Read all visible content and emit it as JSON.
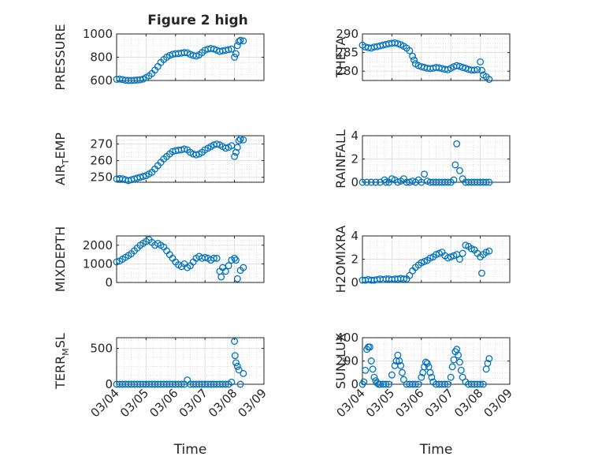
{
  "figure": {
    "title": "Figure 2 high"
  },
  "chart_data": [
    {
      "type": "scatter",
      "ylabel": "PRESSURE",
      "ylim": [
        600,
        1000
      ],
      "yticks": [
        600,
        800,
        1000
      ],
      "ytick_labels": [
        "600",
        "800",
        "1000"
      ],
      "x": [
        4.0,
        4.1,
        4.2,
        4.3,
        4.4,
        4.5,
        4.6,
        4.7,
        4.8,
        4.9,
        5.0,
        5.1,
        5.2,
        5.3,
        5.4,
        5.5,
        5.6,
        5.7,
        5.8,
        5.9,
        6.0,
        6.1,
        6.2,
        6.3,
        6.4,
        6.5,
        6.6,
        6.7,
        6.8,
        6.9,
        7.0,
        7.1,
        7.2,
        7.3,
        7.4,
        7.5,
        7.6,
        7.7,
        7.8,
        7.9,
        8.0,
        8.05,
        8.1,
        8.15,
        8.2,
        8.3
      ],
      "y": [
        610,
        612,
        608,
        602,
        600,
        600,
        602,
        604,
        606,
        612,
        625,
        640,
        660,
        690,
        720,
        755,
        780,
        800,
        815,
        825,
        830,
        832,
        835,
        840,
        838,
        825,
        815,
        810,
        820,
        840,
        860,
        870,
        875,
        870,
        860,
        850,
        855,
        860,
        865,
        870,
        800,
        830,
        900,
        935,
        945,
        940
      ]
    },
    {
      "type": "scatter",
      "ylabel": "THETA",
      "ylim": [
        277.5,
        290
      ],
      "yticks": [
        280,
        285,
        290
      ],
      "ytick_labels": [
        "280",
        "285",
        "290"
      ],
      "x": [
        4.0,
        4.1,
        4.2,
        4.3,
        4.4,
        4.5,
        4.6,
        4.7,
        4.8,
        4.9,
        5.0,
        5.1,
        5.2,
        5.3,
        5.4,
        5.5,
        5.6,
        5.7,
        5.75,
        5.8,
        5.9,
        6.0,
        6.1,
        6.2,
        6.3,
        6.4,
        6.5,
        6.6,
        6.7,
        6.8,
        6.9,
        7.0,
        7.1,
        7.2,
        7.3,
        7.4,
        7.5,
        7.6,
        7.7,
        7.8,
        7.9,
        8.0,
        8.05,
        8.1,
        8.2,
        8.3
      ],
      "y": [
        287,
        286.5,
        286.3,
        286.2,
        286.5,
        286.6,
        286.8,
        287,
        287.2,
        287.4,
        287.5,
        287.6,
        287.4,
        287.1,
        286.7,
        286.2,
        285.5,
        284,
        283,
        282,
        281.5,
        281.2,
        281,
        280.8,
        280.7,
        280.8,
        281,
        280.9,
        280.7,
        280.5,
        280.4,
        280.8,
        281.2,
        281.5,
        281.3,
        281,
        280.8,
        280.5,
        280.3,
        280.3,
        280.4,
        282.5,
        280.2,
        279,
        278.5,
        277.8
      ]
    },
    {
      "type": "scatter",
      "ylabel": "AIR_TEMP",
      "ylim": [
        247,
        275
      ],
      "yticks": [
        250,
        260,
        270
      ],
      "ytick_labels": [
        "250",
        "260",
        "270"
      ],
      "x": [
        4.0,
        4.1,
        4.2,
        4.3,
        4.4,
        4.5,
        4.6,
        4.7,
        4.8,
        4.9,
        5.0,
        5.1,
        5.2,
        5.3,
        5.4,
        5.5,
        5.6,
        5.7,
        5.8,
        5.9,
        6.0,
        6.1,
        6.2,
        6.3,
        6.4,
        6.5,
        6.6,
        6.7,
        6.8,
        6.9,
        7.0,
        7.1,
        7.2,
        7.3,
        7.4,
        7.5,
        7.6,
        7.7,
        7.8,
        7.9,
        8.0,
        8.05,
        8.1,
        8.15,
        8.2,
        8.3
      ],
      "y": [
        249,
        249.2,
        249.1,
        248.5,
        248,
        248.5,
        249,
        249.5,
        250,
        250.5,
        251,
        252,
        253,
        255,
        257,
        259,
        261,
        262.5,
        264,
        265.5,
        266,
        266.3,
        266.5,
        267,
        266.5,
        265,
        264,
        263.5,
        264,
        265,
        266.5,
        267.5,
        268.5,
        269.5,
        270,
        269.5,
        268.5,
        267.5,
        268,
        269,
        262.5,
        265,
        268,
        272,
        273,
        272.5
      ]
    },
    {
      "type": "scatter",
      "ylabel": "RAINFALL",
      "ylim": [
        0,
        4
      ],
      "yticks": [
        0,
        2,
        4
      ],
      "ytick_labels": [
        "0",
        "2",
        "4"
      ],
      "x": [
        4.0,
        4.15,
        4.3,
        4.45,
        4.6,
        4.75,
        4.8,
        4.9,
        5.0,
        5.1,
        5.2,
        5.3,
        5.4,
        5.5,
        5.6,
        5.7,
        5.8,
        5.9,
        6.0,
        6.1,
        6.2,
        6.3,
        6.4,
        6.5,
        6.6,
        6.7,
        6.8,
        6.9,
        7.0,
        7.1,
        7.15,
        7.2,
        7.3,
        7.4,
        7.5,
        7.6,
        7.7,
        7.8,
        7.9,
        8.0,
        8.1,
        8.2,
        8.3
      ],
      "y": [
        0,
        0,
        0,
        0,
        0,
        0.2,
        0,
        0,
        0.3,
        0.2,
        0,
        0.1,
        0.3,
        0,
        0,
        0.1,
        0,
        0.2,
        0,
        0.7,
        0.1,
        0,
        0,
        0,
        0,
        0,
        0,
        0,
        0,
        0.2,
        1.5,
        3.3,
        1.0,
        0.3,
        0,
        0,
        0,
        0,
        0,
        0,
        0,
        0,
        0
      ]
    },
    {
      "type": "scatter",
      "ylabel": "MIXDEPTH",
      "ylim": [
        0,
        2500
      ],
      "yticks": [
        0,
        1000,
        2000
      ],
      "ytick_labels": [
        "0",
        "1000",
        "2000"
      ],
      "x": [
        4.0,
        4.1,
        4.2,
        4.3,
        4.4,
        4.5,
        4.6,
        4.7,
        4.8,
        4.9,
        5.0,
        5.1,
        5.2,
        5.3,
        5.4,
        5.5,
        5.6,
        5.7,
        5.8,
        5.9,
        6.0,
        6.1,
        6.2,
        6.3,
        6.4,
        6.5,
        6.6,
        6.7,
        6.8,
        6.9,
        7.0,
        7.1,
        7.2,
        7.3,
        7.4,
        7.5,
        7.55,
        7.6,
        7.7,
        7.8,
        7.9,
        8.0,
        8.05,
        8.1,
        8.2,
        8.3
      ],
      "y": [
        1100,
        1150,
        1250,
        1350,
        1450,
        1550,
        1700,
        1850,
        2000,
        2100,
        2200,
        2300,
        2150,
        2000,
        2100,
        2000,
        1900,
        1700,
        1500,
        1300,
        1100,
        950,
        850,
        1000,
        800,
        900,
        1100,
        1300,
        1400,
        1300,
        1350,
        1300,
        1200,
        1300,
        1300,
        600,
        300,
        800,
        600,
        900,
        1200,
        1300,
        1200,
        200,
        650,
        800
      ]
    },
    {
      "type": "scatter",
      "ylabel": "H2OMIXRA",
      "ylim": [
        0,
        4
      ],
      "yticks": [
        0,
        2,
        4
      ],
      "ytick_labels": [
        "0",
        "2",
        "4"
      ],
      "x": [
        4.0,
        4.1,
        4.2,
        4.3,
        4.4,
        4.5,
        4.6,
        4.7,
        4.8,
        4.9,
        5.0,
        5.1,
        5.2,
        5.3,
        5.4,
        5.5,
        5.6,
        5.7,
        5.8,
        5.9,
        6.0,
        6.1,
        6.2,
        6.3,
        6.4,
        6.5,
        6.6,
        6.7,
        6.8,
        6.9,
        7.0,
        7.1,
        7.2,
        7.3,
        7.4,
        7.5,
        7.6,
        7.7,
        7.8,
        7.9,
        8.0,
        8.05,
        8.1,
        8.2,
        8.3
      ],
      "y": [
        0.2,
        0.2,
        0.25,
        0.2,
        0.2,
        0.25,
        0.3,
        0.25,
        0.3,
        0.3,
        0.25,
        0.3,
        0.3,
        0.35,
        0.3,
        0.3,
        0.6,
        1.0,
        1.3,
        1.5,
        1.7,
        1.8,
        1.9,
        2.1,
        2.2,
        2.4,
        2.5,
        2.6,
        2.3,
        2.1,
        2.2,
        2.3,
        2.4,
        2.0,
        2.5,
        3.2,
        3.1,
        2.9,
        2.8,
        2.5,
        2.2,
        0.8,
        2.4,
        2.6,
        2.7
      ]
    },
    {
      "type": "scatter",
      "ylabel": "TERR_MSL",
      "ylim": [
        0,
        650
      ],
      "yticks": [
        0,
        500
      ],
      "ytick_labels": [
        "0",
        "500"
      ],
      "x": [
        4.0,
        4.1,
        4.2,
        4.3,
        4.4,
        4.5,
        4.6,
        4.7,
        4.8,
        4.9,
        5.0,
        5.1,
        5.2,
        5.3,
        5.4,
        5.5,
        5.6,
        5.7,
        5.8,
        5.9,
        6.0,
        6.1,
        6.2,
        6.3,
        6.4,
        6.5,
        6.6,
        6.7,
        6.8,
        6.9,
        7.0,
        7.1,
        7.2,
        7.3,
        7.4,
        7.5,
        7.6,
        7.7,
        7.8,
        7.9,
        8.0,
        8.02,
        8.05,
        8.1,
        8.15,
        8.2,
        8.3
      ],
      "y": [
        0,
        0,
        0,
        0,
        0,
        0,
        0,
        0,
        0,
        0,
        0,
        0,
        0,
        0,
        0,
        0,
        0,
        0,
        0,
        0,
        0,
        0,
        0,
        0,
        60,
        0,
        0,
        0,
        0,
        0,
        0,
        0,
        0,
        0,
        0,
        0,
        0,
        0,
        0,
        30,
        600,
        400,
        300,
        250,
        200,
        0,
        150
      ]
    },
    {
      "type": "scatter",
      "ylabel": "SUN_FLUX",
      "ylim": [
        0,
        400
      ],
      "yticks": [
        0,
        200,
        400
      ],
      "ytick_labels": [
        "0",
        "200",
        "400"
      ],
      "x": [
        4.0,
        4.05,
        4.1,
        4.15,
        4.2,
        4.25,
        4.3,
        4.35,
        4.4,
        4.45,
        4.5,
        4.55,
        4.6,
        4.7,
        4.8,
        4.9,
        5.0,
        5.1,
        5.15,
        5.2,
        5.25,
        5.3,
        5.35,
        5.4,
        5.5,
        5.6,
        5.7,
        5.8,
        5.9,
        6.0,
        6.05,
        6.1,
        6.15,
        6.2,
        6.25,
        6.3,
        6.35,
        6.4,
        6.5,
        6.6,
        6.7,
        6.8,
        6.9,
        7.0,
        7.05,
        7.1,
        7.15,
        7.2,
        7.25,
        7.3,
        7.35,
        7.4,
        7.5,
        7.6,
        7.7,
        7.8,
        7.9,
        8.0,
        8.1,
        8.2,
        8.25,
        8.3
      ],
      "y": [
        0,
        20,
        120,
        300,
        320,
        320,
        200,
        130,
        60,
        30,
        10,
        0,
        0,
        0,
        0,
        0,
        80,
        160,
        200,
        250,
        200,
        160,
        100,
        40,
        0,
        0,
        0,
        0,
        0,
        60,
        100,
        150,
        190,
        180,
        150,
        100,
        60,
        20,
        0,
        0,
        0,
        0,
        0,
        60,
        150,
        210,
        280,
        300,
        250,
        190,
        120,
        60,
        20,
        0,
        0,
        0,
        0,
        0,
        0,
        130,
        180,
        220
      ]
    }
  ],
  "x_axis": {
    "xlim": [
      4.0,
      9.0
    ],
    "ticks": [
      4,
      5,
      6,
      7,
      8,
      9
    ],
    "tick_labels": [
      "03/04",
      "03/05",
      "03/06",
      "03/07",
      "03/08",
      "03/09"
    ],
    "label": "Time"
  },
  "colors": {
    "marker": "#0072bd",
    "axis": "#262626",
    "grid": "#dfdfdf",
    "minor_grid": "#c8c8c8"
  },
  "grid": true
}
